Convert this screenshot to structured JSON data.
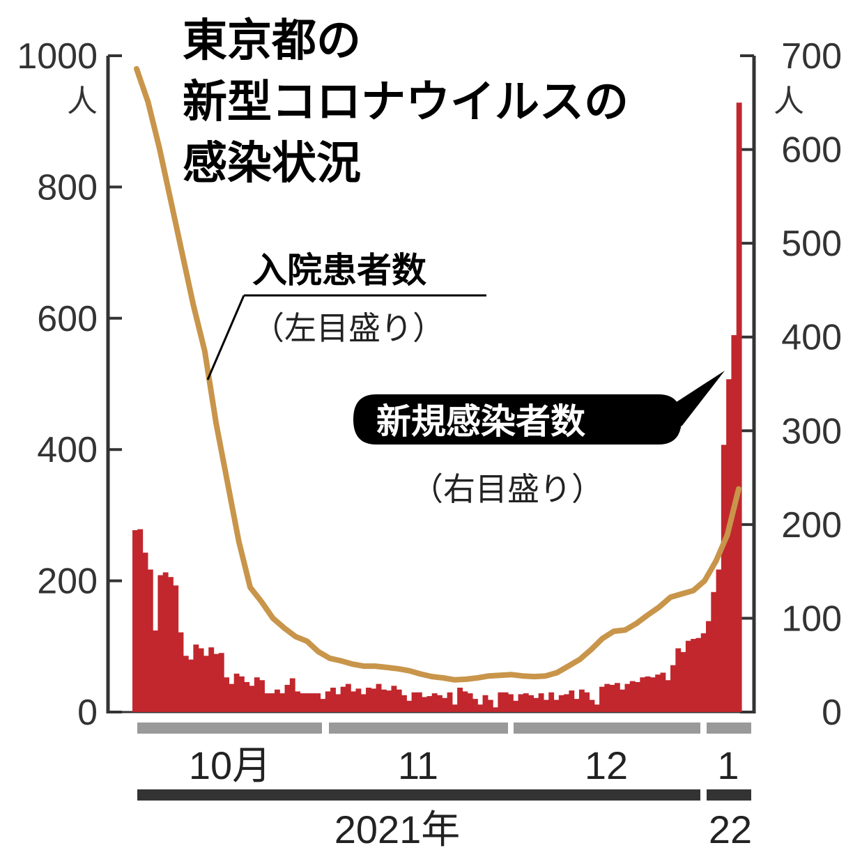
{
  "title": {
    "line1": "東京都の",
    "line2": "新型コロナウイルスの",
    "line3": "感染状況"
  },
  "annotations": {
    "hospital_main": "入院患者数",
    "hospital_sub": "（左目盛り）",
    "cases_main": "新規感染者数",
    "cases_sub": "（右目盛り）"
  },
  "axes": {
    "left_ticks": [
      "0",
      "200",
      "400",
      "600",
      "800",
      "1000"
    ],
    "left_unit": "人",
    "right_ticks": [
      "0",
      "100",
      "200",
      "300",
      "400",
      "500",
      "600",
      "700"
    ],
    "right_unit": "人"
  },
  "x_axis": {
    "months": [
      "10月",
      "11",
      "12",
      "1"
    ],
    "years": [
      "2021年",
      "22"
    ]
  },
  "colors": {
    "bars": "#c1272d",
    "line": "#c8954a",
    "axis": "#333333",
    "month_bar": "#999999",
    "year_bar": "#333333"
  },
  "chart_data": {
    "type": "bar+line",
    "left_ylim": [
      0,
      1000
    ],
    "right_ylim": [
      0,
      700
    ],
    "series": [
      {
        "name": "新規感染者数",
        "type": "bar",
        "axis": "right",
        "values": [
          194,
          195,
          170,
          152,
          87,
          146,
          149,
          144,
          135,
          85,
          60,
          56,
          72,
          68,
          60,
          69,
          62,
          63,
          37,
          30,
          41,
          38,
          32,
          28,
          37,
          34,
          20,
          20,
          24,
          20,
          29,
          36,
          22,
          20,
          20,
          20,
          20,
          14,
          22,
          26,
          19,
          27,
          30,
          22,
          25,
          19,
          26,
          25,
          30,
          24,
          23,
          28,
          24,
          18,
          12,
          21,
          21,
          16,
          17,
          20,
          18,
          15,
          21,
          8,
          26,
          22,
          20,
          14,
          8,
          18,
          13,
          5,
          21,
          21,
          19,
          12,
          19,
          20,
          18,
          15,
          20,
          13,
          21,
          13,
          18,
          19,
          23,
          14,
          24,
          21,
          13,
          8,
          27,
          30,
          29,
          31,
          24,
          30,
          33,
          32,
          37,
          38,
          37,
          40,
          42,
          34,
          50,
          68,
          64,
          76,
          78,
          79,
          84,
          97,
          128,
          152,
          285,
          355,
          402,
          650
        ]
      },
      {
        "name": "入院患者数",
        "type": "line",
        "axis": "left",
        "values": [
          980,
          930,
          860,
          780,
          700,
          620,
          550,
          440,
          350,
          260,
          190,
          168,
          143,
          128,
          115,
          108,
          92,
          82,
          78,
          73,
          70,
          70,
          68,
          66,
          63,
          58,
          54,
          52,
          49,
          50,
          52,
          55,
          56,
          57,
          55,
          54,
          55,
          60,
          70,
          80,
          95,
          112,
          123,
          125,
          135,
          148,
          160,
          175,
          180,
          185,
          200,
          230,
          270,
          340
        ]
      }
    ]
  }
}
